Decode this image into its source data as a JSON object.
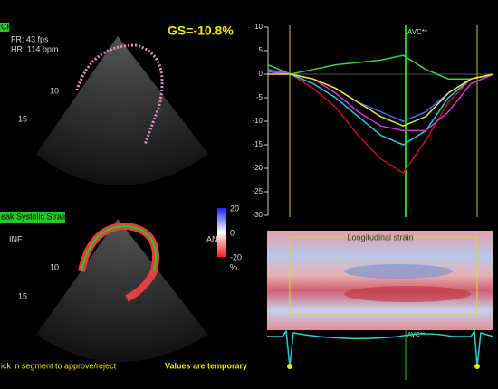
{
  "header": {
    "view": "CH",
    "frame_rate": "FR: 43 fps",
    "heart_rate": "HR: 114 bpm",
    "global_strain": "GS=-10.8%",
    "depth_labels": [
      "10",
      "15"
    ]
  },
  "bottom_panel": {
    "label": "eak Systolic Strain",
    "left": "INF",
    "right": "ANT",
    "colorbar": [
      "20",
      "0",
      "-20",
      "%"
    ],
    "depth_labels": [
      "10",
      "15"
    ],
    "hint": "ick in segment to approve/reject",
    "note": "Values are temporary"
  },
  "chart_data": {
    "type": "line",
    "marker": "AVC**",
    "categories": [
      null,
      null,
      null,
      null,
      null,
      null,
      null,
      null,
      null,
      null,
      null
    ],
    "series": [
      {
        "color": "#3fd13f",
        "values": [
          2,
          0,
          1,
          2,
          2.5,
          3,
          4,
          1,
          -1,
          -1,
          0
        ]
      },
      {
        "color": "#c0141e",
        "values": [
          1,
          0,
          -3,
          -7,
          -13,
          -18,
          -21,
          -14,
          -6,
          -1,
          0
        ]
      },
      {
        "color": "#2ec8d8",
        "values": [
          1,
          0,
          -2,
          -5,
          -9,
          -13,
          -15,
          -12,
          -5,
          -1,
          0
        ]
      },
      {
        "color": "#4a6cf0",
        "values": [
          1,
          0,
          -1,
          -3,
          -6,
          -8,
          -10,
          -8,
          -4,
          -1,
          0
        ]
      },
      {
        "color": "#d23ad2",
        "values": [
          0.5,
          0,
          -1,
          -4,
          -8,
          -11,
          -12,
          -12,
          -8,
          -2,
          0
        ]
      },
      {
        "color": "#e8e83a",
        "values": [
          0,
          0,
          -1,
          -3,
          -6,
          -9,
          -11,
          -9,
          -4,
          -1,
          0
        ]
      }
    ],
    "ylim": [
      -30,
      10
    ],
    "yticks": [
      10,
      5,
      0,
      -5,
      -10,
      -15,
      -20,
      -25,
      -30
    ]
  },
  "heatmap": {
    "title": "Longitudinal strain"
  },
  "ecg": {
    "marker": "AVC**"
  }
}
